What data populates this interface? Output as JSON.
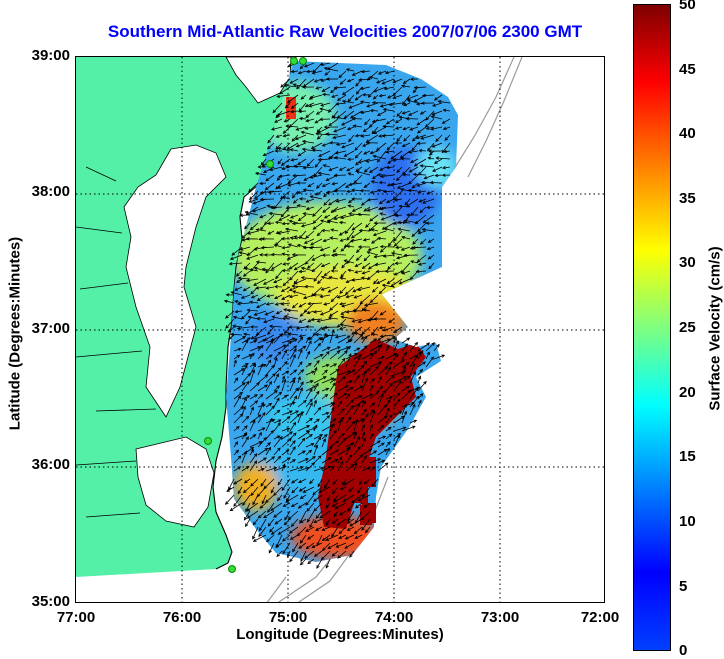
{
  "title": "Southern Mid-Atlantic Raw Velocities 2007/07/06 2300 GMT",
  "axes": {
    "xlabel": "Longitude (Degrees:Minutes)",
    "ylabel": "Latitude (Degrees:Minutes)",
    "xticks": [
      "77:00",
      "76:00",
      "75:00",
      "74:00",
      "73:00",
      "72:00"
    ],
    "yticks": [
      "39:00",
      "38:00",
      "37:00",
      "36:00",
      "35:00"
    ],
    "xlim": [
      -77,
      -72
    ],
    "ylim": [
      35,
      39
    ],
    "grid": true
  },
  "colorbar": {
    "label": "Surface Velocity (cm/s)",
    "ticks": [
      "50",
      "45",
      "40",
      "35",
      "30",
      "25",
      "20",
      "15",
      "10",
      "5",
      "0"
    ],
    "range": [
      0,
      50
    ],
    "colormap": "jet"
  },
  "colors": {
    "title": "#0000ff",
    "land": "#55f0a8",
    "coast": "#000000",
    "bathymetry": "#999999",
    "vectors": "#000000",
    "stations": "#33dd33"
  }
}
